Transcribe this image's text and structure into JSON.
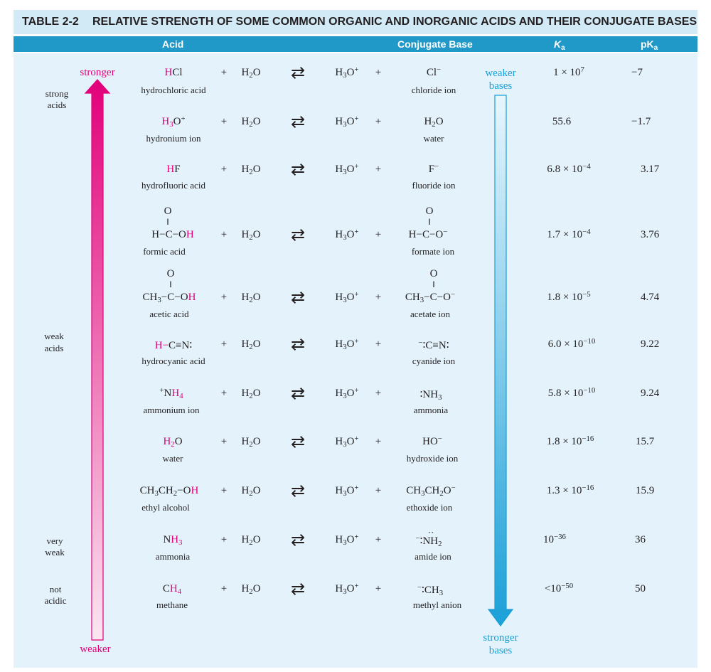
{
  "title": {
    "number": "TABLE 2-2",
    "text": "RELATIVE STRENGTH OF SOME COMMON ORGANIC AND INORGANIC ACIDS AND THEIR CONJUGATE BASES"
  },
  "headers": {
    "acid": "Acid",
    "base": "Conjugate Base",
    "ka": "K",
    "ka_sub": "a",
    "pka": "pK",
    "pka_sub": "a"
  },
  "equation": {
    "plus": "+",
    "water_h": "H",
    "water_sub": "2",
    "water_o": "O",
    "hydronium_h": "H",
    "hydronium_sub": "3",
    "hydronium_o": "O",
    "hydronium_sup": "+",
    "equilibrium": "⇄"
  },
  "left_arrow": {
    "top": "stronger",
    "bottom": "weaker"
  },
  "right_arrow": {
    "top_1": "weaker",
    "top_2": "bases",
    "bottom_1": "stronger",
    "bottom_2": "bases"
  },
  "strength_labels": {
    "strong_1": "strong",
    "strong_2": "acids",
    "weak_1": "weak",
    "weak_2": "acids",
    "very_weak_1": "very",
    "very_weak_2": "weak",
    "not_acidic_1": "not",
    "not_acidic_2": "acidic"
  },
  "acids": [
    {
      "name": "hydrochloric acid",
      "ka_a": "1 × 10",
      "ka_exp": "7",
      "pka": "−7"
    },
    {
      "name": "hydronium ion",
      "ka_a": "55.6",
      "ka_exp": "",
      "pka": "−1.7"
    },
    {
      "name": "hydrofluoric acid",
      "ka_a": "6.8 × 10",
      "ka_exp": "−4",
      "pka": "3.17"
    },
    {
      "name": "formic acid",
      "ka_a": "1.7 × 10",
      "ka_exp": "−4",
      "pka": "3.76"
    },
    {
      "name": "acetic acid",
      "ka_a": "1.8 × 10",
      "ka_exp": "−5",
      "pka": "4.74"
    },
    {
      "name": "hydrocyanic acid",
      "ka_a": "6.0 × 10",
      "ka_exp": "−10",
      "pka": "9.22"
    },
    {
      "name": "ammonium ion",
      "ka_a": "5.8 × 10",
      "ka_exp": "−10",
      "pka": "9.24"
    },
    {
      "name": "water",
      "ka_a": "1.8 × 10",
      "ka_exp": "−16",
      "pka": "15.7"
    },
    {
      "name": "ethyl alcohol",
      "ka_a": "1.3 × 10",
      "ka_exp": "−16",
      "pka": "15.9"
    },
    {
      "name": "ammonia",
      "ka_a": "10",
      "ka_exp": "−36",
      "pka": "36"
    },
    {
      "name": "methane",
      "ka_a": "<10",
      "ka_exp": "−50",
      "pka": "50"
    }
  ],
  "bases": [
    {
      "name": "chloride ion"
    },
    {
      "name": "water"
    },
    {
      "name": "fluoride ion"
    },
    {
      "name": "formate ion"
    },
    {
      "name": "acetate ion"
    },
    {
      "name": "cyanide ion"
    },
    {
      "name": "ammonia"
    },
    {
      "name": "hydroxide ion"
    },
    {
      "name": "ethoxide ion"
    },
    {
      "name": "amide ion"
    },
    {
      "name": "methyl anion"
    }
  ],
  "formulas": {
    "H": "H",
    "Cl": "Cl",
    "F": "F",
    "O": "O",
    "C": "C",
    "N": "N",
    "OH": "OH",
    "CH": "CH",
    "NH": "NH",
    "HO": "HO",
    "CH3CH": "CH",
    "sub3": "3",
    "sub4": "4",
    "sub2": "2",
    "plus_sup": "+",
    "minus_sup": "−",
    "triple": "≡",
    "dash": "−",
    "double_bar": "‖",
    "lone_pair": "∶",
    "lone_pair_top": "··",
    "ethyl_left": "CH",
    "ethyl_mid": "CH",
    "ethyl_o": "O"
  },
  "colors": {
    "title_bg": "#d2e9f6",
    "header_bg": "#2098c8",
    "panel_bg": "#e3f2fb",
    "acid_arrow": "#e2007a",
    "base_arrow": "#1a9fd6"
  }
}
